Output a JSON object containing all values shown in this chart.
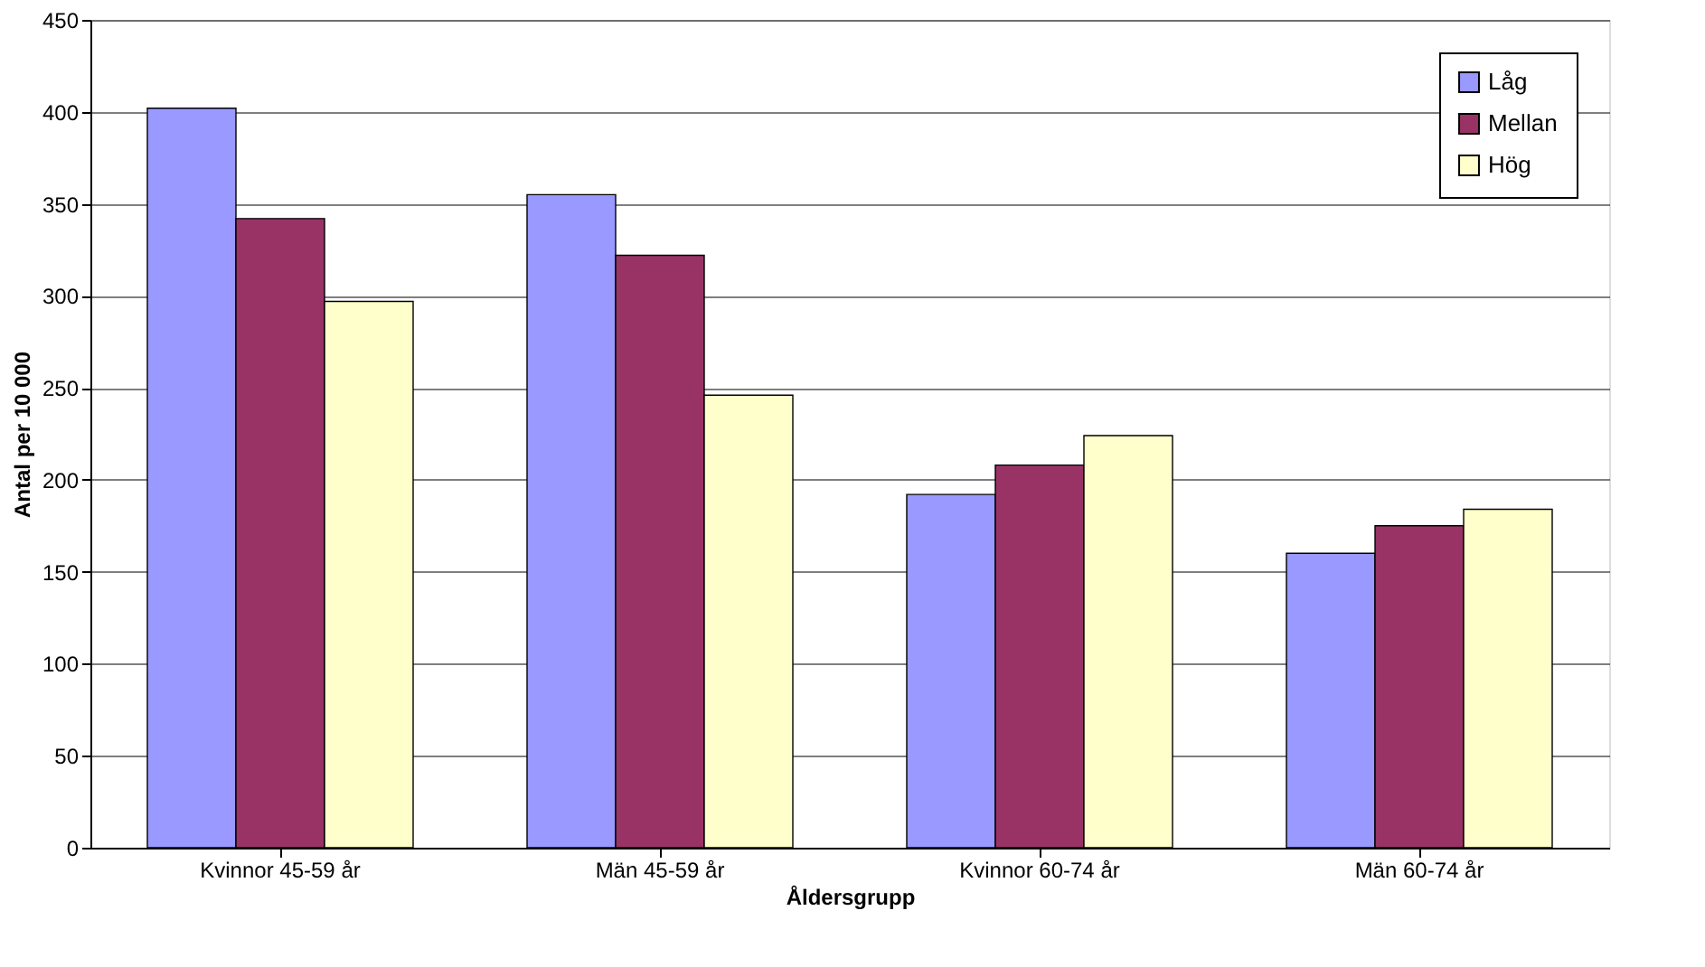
{
  "chart_data": {
    "type": "bar",
    "xlabel": "Åldersgrupp",
    "ylabel": "Antal per 10 000",
    "categories": [
      "Kvinnor 45-59 år",
      "Män 45-59 år",
      "Kvinnor 60-74 år",
      "Män 60-74 år"
    ],
    "series": [
      {
        "name": "Låg",
        "color": "#9999ff",
        "values": [
          402,
          355,
          192,
          160
        ]
      },
      {
        "name": "Mellan",
        "color": "#993366",
        "values": [
          342,
          322,
          208,
          175
        ]
      },
      {
        "name": "Hög",
        "color": "#ffffcc",
        "values": [
          297,
          246,
          224,
          184
        ]
      }
    ],
    "ylim": [
      0,
      450
    ],
    "yticks": [
      0,
      50,
      100,
      150,
      200,
      250,
      300,
      350,
      400,
      450
    ],
    "grid": "y",
    "legend": "top right"
  }
}
